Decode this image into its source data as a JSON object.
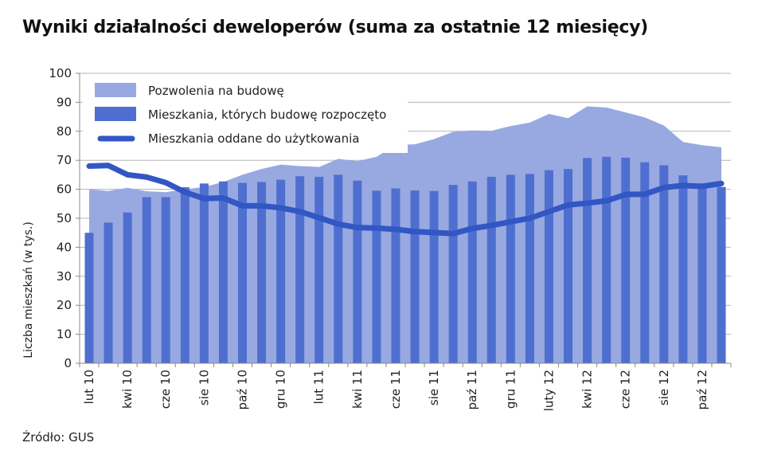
{
  "title": "Wyniki działalności deweloperów (suma za ostatnie 12 miesięcy)",
  "source": "Źródło: GUS",
  "chart_data": {
    "type": "bar",
    "title": "Wyniki działalności deweloperów (suma za ostatnie 12 miesięcy)",
    "xlabel": "",
    "ylabel": "Liczba mieszkań (w tys.)",
    "ylim": [
      0,
      100
    ],
    "yticks": [
      0,
      10,
      20,
      30,
      40,
      50,
      60,
      70,
      80,
      90,
      100
    ],
    "grid": true,
    "legend_position": "top-left",
    "categories": [
      "lut 10",
      "mar 10",
      "kwi 10",
      "maj 10",
      "cze 10",
      "lip 10",
      "sie 10",
      "wrz 10",
      "paź 10",
      "lis 10",
      "gru 10",
      "sty 11",
      "lut 11",
      "mar 11",
      "kwi 11",
      "maj 11",
      "cze 11",
      "lip 11",
      "sie 11",
      "wrz 11",
      "paź 11",
      "lis 11",
      "gru 11",
      "sty 12",
      "luty 12",
      "mar 12",
      "kwi 12",
      "maj 12",
      "cze 12",
      "lip 12",
      "sie 12",
      "wrz 12",
      "paź 12",
      "lis 12"
    ],
    "tick_labels": [
      "lut 10",
      "kwi 10",
      "cze 10",
      "sie 10",
      "paź 10",
      "gru 10",
      "lut 11",
      "kwi 11",
      "cze 11",
      "sie 11",
      "paź 11",
      "gru 11",
      "luty 12",
      "kwi 12",
      "cze 12",
      "sie 12",
      "paź 12"
    ],
    "series": [
      {
        "name": "Pozwolenia na budowę",
        "type": "area",
        "color": "#97a9e0",
        "values": [
          60,
          59.4,
          60.5,
          59.3,
          59,
          60,
          60.8,
          62.5,
          65,
          67,
          68.5,
          68,
          67.7,
          70.5,
          69.7,
          71.2,
          75.3,
          75.5,
          77.3,
          79.8,
          80.3,
          80.2,
          81.8,
          83,
          86,
          84.5,
          88.6,
          88.2,
          86.5,
          84.8,
          82,
          76.3,
          75.2,
          74.5
        ]
      },
      {
        "name": "Mieszkania, których budowę rozpoczęto",
        "type": "bar",
        "color": "#4f6fd0",
        "values": [
          45,
          48.5,
          52,
          57.3,
          57.3,
          60.7,
          62,
          62.7,
          62.2,
          62.5,
          63.3,
          64.5,
          64.3,
          65,
          63,
          59.5,
          60.3,
          59.6,
          59.4,
          61.5,
          62.7,
          64.3,
          65,
          65.3,
          66.6,
          67,
          70.8,
          71.2,
          70.9,
          69.3,
          68.3,
          64.8,
          62,
          60.8
        ]
      },
      {
        "name": "Mieszkania oddane do użytkowania",
        "type": "line",
        "color": "#3256c4",
        "values": [
          68,
          68.2,
          65,
          64.2,
          62.3,
          59,
          56.8,
          57,
          54.3,
          54.3,
          53.6,
          52.3,
          50.2,
          48,
          46.8,
          46.6,
          46.2,
          45.4,
          45.1,
          44.7,
          46.5,
          47.5,
          48.8,
          50,
          52.3,
          54.6,
          55.2,
          56,
          58.2,
          58.3,
          60.6,
          61.3,
          61,
          62
        ]
      }
    ]
  }
}
